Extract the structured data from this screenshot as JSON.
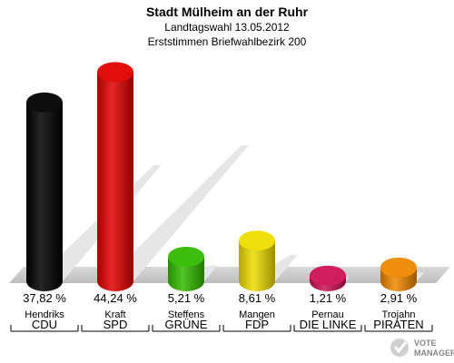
{
  "chart_data": {
    "type": "bar",
    "title": "Stadt Mülheim an der Ruhr",
    "subtitle": "Landtagswahl 13.05.2012",
    "subtitle2": "Erststimmen Briefwahlbezirk 200",
    "categories": [
      "CDU",
      "SPD",
      "GRÜNE",
      "FDP",
      "DIE LINKE",
      "PIRATEN"
    ],
    "candidates": [
      "Hendriks",
      "Kraft",
      "Steffens",
      "Mangen",
      "Pernau",
      "Trojahn"
    ],
    "values": [
      37.82,
      44.24,
      5.21,
      8.61,
      1.21,
      2.91
    ],
    "value_labels": [
      "37,82 %",
      "44,24 %",
      "5,21 %",
      "8,61 %",
      "1,21 %",
      "2,91 %"
    ],
    "colors": [
      "#000000",
      "#e00000",
      "#33bb00",
      "#eedd00",
      "#cc1155",
      "#ee8800"
    ],
    "ylim": [
      0,
      47
    ],
    "grid": false,
    "legend": "none"
  },
  "logo": {
    "line1": "VOTE",
    "line2": "MANAGER"
  }
}
